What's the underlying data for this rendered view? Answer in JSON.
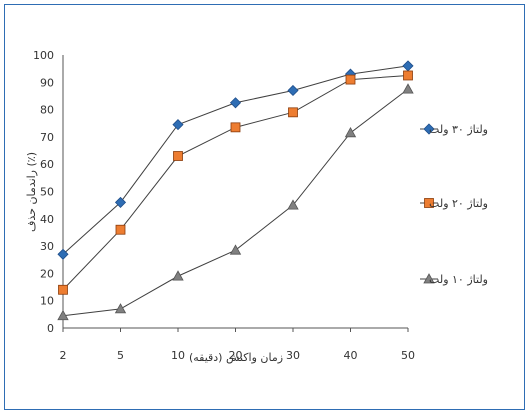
{
  "chart_data": {
    "type": "line",
    "categories": [
      "2",
      "5",
      "10",
      "20",
      "30",
      "40",
      "50"
    ],
    "series": [
      {
        "name": "ولتاژ ۳۰ ولت",
        "values": [
          27,
          46,
          74.5,
          82.5,
          87,
          93,
          96
        ],
        "color": "#2e6db4",
        "marker": "diamond"
      },
      {
        "name": "ولتاژ ۲۰ ولت",
        "values": [
          14,
          36,
          63,
          73.5,
          79,
          91,
          92.5
        ],
        "color": "#ed7d31",
        "marker": "square"
      },
      {
        "name": "ولتاژ ۱۰ ولت",
        "values": [
          4.5,
          7,
          19,
          28.5,
          45,
          71.5,
          87.5
        ],
        "color": "#808080",
        "marker": "triangle"
      }
    ],
    "xlabel": "زمان واکنش (دقیقه)",
    "ylabel": "راندمان حذف (٪)",
    "ylim": [
      0,
      100
    ],
    "yticks": [
      "0",
      "10",
      "20",
      "30",
      "40",
      "50",
      "60",
      "70",
      "80",
      "90",
      "100"
    ],
    "grid": false,
    "legend_position": "right"
  }
}
